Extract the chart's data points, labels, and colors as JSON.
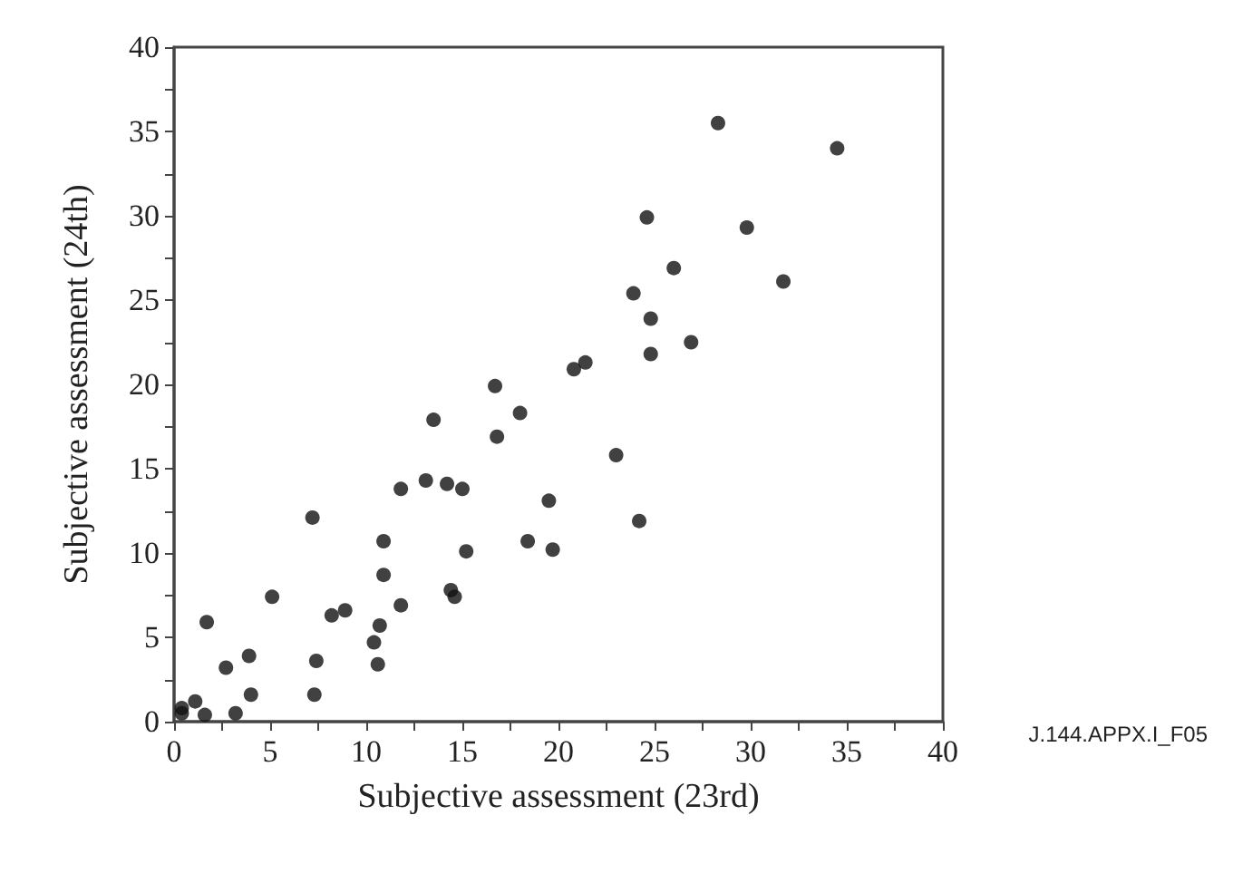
{
  "chart_data": {
    "type": "scatter",
    "xlabel": "Subjective assessment (23rd)",
    "ylabel": "Subjective assessment (24th)",
    "annotations": [
      "J.144.APPX.I_F05"
    ],
    "x": [
      0.4,
      0.4,
      1.1,
      1.6,
      1.7,
      2.7,
      3.2,
      3.9,
      4.0,
      5.1,
      7.2,
      7.4,
      7.3,
      8.2,
      8.9,
      10.4,
      10.6,
      10.7,
      10.9,
      10.9,
      11.8,
      11.8,
      13.1,
      14.2,
      15.0,
      15.2,
      14.4,
      14.6,
      23.9,
      24.8,
      26.9,
      24.8,
      21.4,
      20.8,
      16.7,
      18.0,
      13.5,
      16.8,
      23.0,
      19.5,
      24.2,
      18.4,
      19.7,
      28.3,
      34.5,
      24.6,
      29.8,
      26.0,
      31.7
    ],
    "series": [
      {
        "color": "#111111",
        "values": [
          0.8,
          0.5,
          1.2,
          0.4,
          5.9,
          3.2,
          0.5,
          3.9,
          1.6,
          7.4,
          12.1,
          3.6,
          1.6,
          6.3,
          6.6,
          4.7,
          3.4,
          5.7,
          8.7,
          10.7,
          6.9,
          13.8,
          14.3,
          14.1,
          13.8,
          10.1,
          7.8,
          7.4,
          25.4,
          23.9,
          22.5,
          21.8,
          21.3,
          20.9,
          19.9,
          18.3,
          17.9,
          16.9,
          15.8,
          13.1,
          11.9,
          10.7,
          10.2,
          35.5,
          34.0,
          29.9,
          29.3,
          26.9,
          26.1
        ]
      }
    ],
    "xlim": [
      0,
      40
    ],
    "ylim": [
      0,
      40
    ],
    "xticks": [
      0,
      {
        "value": 2.5,
        "label": null
      },
      5,
      {
        "value": 7.5,
        "label": null
      },
      10,
      {
        "value": 12.5,
        "label": null
      },
      15,
      {
        "value": 17.5,
        "label": null
      },
      20,
      {
        "value": 22.5,
        "label": null
      },
      25,
      {
        "value": 27.5,
        "label": null
      },
      30,
      {
        "value": 32.5,
        "label": null
      },
      35,
      {
        "value": 37.5,
        "label": null
      },
      40
    ],
    "yticks": [
      0,
      {
        "value": 2.5,
        "label": null
      },
      5,
      {
        "value": 7.5,
        "label": null
      },
      10,
      {
        "value": 12.5,
        "label": null
      },
      15,
      {
        "value": 17.5,
        "label": null
      },
      20,
      {
        "value": 22.5,
        "label": null
      },
      25,
      {
        "value": 27.5,
        "label": null
      },
      30,
      {
        "value": 32.5,
        "label": null
      },
      35,
      {
        "value": 37.5,
        "label": null
      },
      40
    ],
    "grid": false,
    "marker": "circle"
  }
}
